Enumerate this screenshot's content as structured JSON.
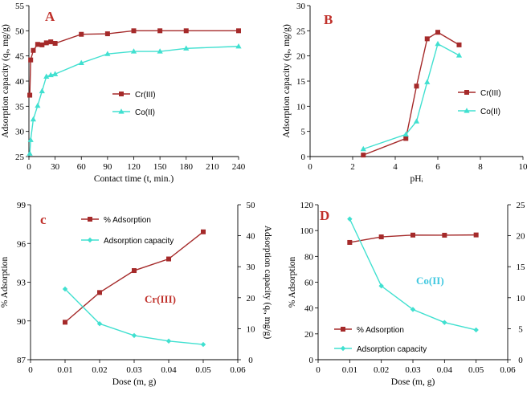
{
  "colors": {
    "series1": "#A52A2A",
    "series2": "#40E0D0",
    "letter": "#C0302A",
    "innerA": "#C0302A",
    "innerB": "#40C8E0"
  },
  "chart_data": [
    {
      "id": "A",
      "type": "line",
      "panel_letter": "A",
      "xlabel": "Contact time (t, min.)",
      "ylabel": "Adsorption capacity (qₑ, mg/g)",
      "xlim": [
        0,
        240
      ],
      "ylim": [
        25,
        55
      ],
      "xticks": [
        0,
        30,
        60,
        90,
        120,
        150,
        180,
        210,
        240
      ],
      "yticks": [
        25,
        30,
        35,
        40,
        45,
        50,
        55
      ],
      "legend": "right-middle",
      "series": [
        {
          "name": "Cr(III)",
          "marker": "square",
          "axis": "left",
          "x": [
            1,
            2,
            5,
            10,
            15,
            20,
            25,
            30,
            60,
            90,
            120,
            150,
            180,
            240
          ],
          "y": [
            37.2,
            44.2,
            46.1,
            47.3,
            47.2,
            47.6,
            47.8,
            47.5,
            49.3,
            49.4,
            50.0,
            50.0,
            50.0,
            50.0
          ]
        },
        {
          "name": "Co(II)",
          "marker": "triangle",
          "axis": "left",
          "x": [
            1,
            2,
            5,
            10,
            15,
            20,
            25,
            30,
            60,
            90,
            120,
            150,
            180,
            240
          ],
          "y": [
            25.6,
            28.3,
            32.4,
            35.1,
            38.0,
            40.9,
            41.2,
            41.4,
            43.6,
            45.4,
            45.9,
            45.9,
            46.5,
            46.9
          ]
        }
      ]
    },
    {
      "id": "B",
      "type": "line",
      "panel_letter": "B",
      "xlabel": "pHᵢ",
      "ylabel": "Adsorption capacity (qₑ, mg/g)",
      "xlim": [
        0,
        10
      ],
      "ylim": [
        0,
        30
      ],
      "xticks": [
        0,
        2,
        4,
        6,
        8,
        10
      ],
      "yticks": [
        0,
        5,
        10,
        15,
        20,
        25,
        30
      ],
      "legend": "right-middle",
      "series": [
        {
          "name": "Cr(III)",
          "marker": "square",
          "axis": "left",
          "x": [
            2.5,
            4.5,
            5.0,
            5.5,
            6.0,
            7.0
          ],
          "y": [
            0.3,
            3.6,
            14.0,
            23.4,
            24.7,
            22.2
          ]
        },
        {
          "name": "Co(II)",
          "marker": "triangle",
          "axis": "left",
          "x": [
            2.5,
            4.5,
            5.0,
            5.5,
            6.0,
            7.0
          ],
          "y": [
            1.5,
            4.4,
            7.0,
            14.8,
            22.4,
            20.1
          ]
        }
      ]
    },
    {
      "id": "C",
      "type": "line",
      "panel_letter": "c",
      "inner_label": "Cr(III)",
      "xlabel": "Dose (m, g)",
      "ylabel": "% Adsorption",
      "y2label": "Adsorption capacity (qₑ, mg/g)",
      "xlim": [
        0,
        0.06
      ],
      "ylim": [
        87,
        99
      ],
      "y2lim": [
        0,
        50
      ],
      "xticks": [
        0,
        0.01,
        0.02,
        0.03,
        0.04,
        0.05,
        0.06
      ],
      "yticks": [
        87,
        90,
        93,
        96,
        99
      ],
      "y2ticks": [
        0,
        10,
        20,
        30,
        40,
        50
      ],
      "legend": "top-left",
      "series": [
        {
          "name": "% Adsorption",
          "marker": "square",
          "axis": "left",
          "x": [
            0.01,
            0.02,
            0.03,
            0.04,
            0.05
          ],
          "y": [
            89.9,
            92.2,
            93.9,
            94.8,
            96.9
          ]
        },
        {
          "name": "Adsorption capacity",
          "marker": "diamond",
          "axis": "right",
          "x": [
            0.01,
            0.02,
            0.03,
            0.04,
            0.05
          ],
          "y": [
            22.8,
            11.6,
            7.8,
            6.0,
            4.9
          ]
        }
      ]
    },
    {
      "id": "D",
      "type": "line",
      "panel_letter": "D",
      "inner_label": "Co(II)",
      "xlabel": "Dose (m, g)",
      "ylabel": "% Adsorption",
      "y2label": "Adsorption capacity (qₑ, mg/g)",
      "xlim": [
        0,
        0.06
      ],
      "ylim": [
        0,
        120
      ],
      "y2lim": [
        0,
        25
      ],
      "xticks": [
        0,
        0.01,
        0.02,
        0.03,
        0.04,
        0.05,
        0.06
      ],
      "yticks": [
        0,
        20,
        40,
        60,
        80,
        100,
        120
      ],
      "y2ticks": [
        0,
        5,
        10,
        15,
        20,
        25
      ],
      "legend": "bottom-left",
      "series": [
        {
          "name": "% Adsorption",
          "marker": "square",
          "axis": "left",
          "x": [
            0.01,
            0.02,
            0.03,
            0.04,
            0.05
          ],
          "y": [
            90.8,
            95.1,
            96.5,
            96.4,
            96.6
          ]
        },
        {
          "name": "Adsorption capacity",
          "marker": "diamond",
          "axis": "right",
          "x": [
            0.01,
            0.02,
            0.03,
            0.04,
            0.05
          ],
          "y": [
            22.7,
            11.9,
            8.1,
            6.0,
            4.8
          ]
        }
      ]
    }
  ]
}
